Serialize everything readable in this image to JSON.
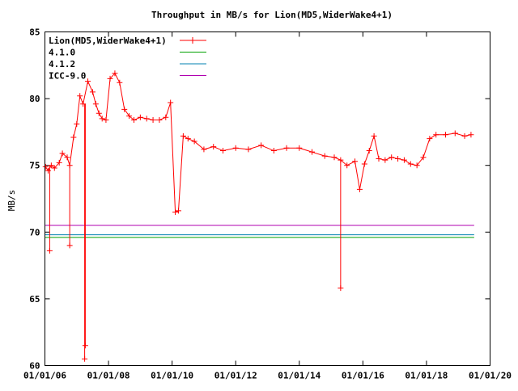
{
  "chart_data": {
    "type": "line",
    "title": "Throughput in MB/s for Lion(MD5,WiderWake4+1)",
    "xlabel": "",
    "ylabel": "MB/s",
    "xlim": [
      2006.0,
      2020.0
    ],
    "ylim": [
      60,
      85
    ],
    "x_ticks": [
      "01/01/06",
      "01/01/08",
      "01/01/10",
      "01/01/12",
      "01/01/14",
      "01/01/16",
      "01/01/18",
      "01/01/20"
    ],
    "y_ticks": [
      60,
      65,
      70,
      75,
      80,
      85
    ],
    "grid": false,
    "legend_position": "top-left",
    "series": [
      {
        "name": "Lion(MD5,WiderWake4+1)",
        "color": "#ff0000",
        "marker": "plus",
        "x": [
          2006.02,
          2006.1,
          2006.2,
          2006.3,
          2006.45,
          2006.55,
          2006.7,
          2006.78,
          2006.9,
          2007.0,
          2007.1,
          2007.2,
          2007.35,
          2007.5,
          2007.6,
          2007.7,
          2007.8,
          2007.92,
          2008.05,
          2008.2,
          2008.35,
          2008.5,
          2008.65,
          2008.8,
          2009.0,
          2009.2,
          2009.4,
          2009.6,
          2009.8,
          2009.95,
          2010.1,
          2010.2,
          2010.35,
          2010.5,
          2010.7,
          2011.0,
          2011.3,
          2011.6,
          2012.0,
          2012.4,
          2012.8,
          2013.2,
          2013.6,
          2014.0,
          2014.4,
          2014.8,
          2015.1,
          2015.3,
          2015.5,
          2015.75,
          2015.9,
          2016.05,
          2016.2,
          2016.35,
          2016.5,
          2016.7,
          2016.9,
          2017.1,
          2017.3,
          2017.5,
          2017.7,
          2017.9,
          2018.1,
          2018.3,
          2018.6,
          2018.9,
          2019.2,
          2019.4
        ],
        "y": [
          74.9,
          74.6,
          75.0,
          74.8,
          75.2,
          75.9,
          75.6,
          75.0,
          77.1,
          78.1,
          80.2,
          79.6,
          81.3,
          80.5,
          79.6,
          78.9,
          78.5,
          78.4,
          81.5,
          81.9,
          81.2,
          79.2,
          78.7,
          78.4,
          78.6,
          78.5,
          78.4,
          78.4,
          78.6,
          79.7,
          71.5,
          71.6,
          77.2,
          77.0,
          76.8,
          76.2,
          76.4,
          76.1,
          76.3,
          76.2,
          76.5,
          76.1,
          76.3,
          76.3,
          76.0,
          75.7,
          75.6,
          75.4,
          75.0,
          75.3,
          73.2,
          75.1,
          76.1,
          77.2,
          75.5,
          75.4,
          75.6,
          75.5,
          75.4,
          75.1,
          75.0,
          75.6,
          77.0,
          77.3,
          77.3,
          77.4,
          77.2,
          77.3
        ],
        "spikes": [
          {
            "x": 2006.15,
            "y": 68.6
          },
          {
            "x": 2006.78,
            "y": 69.0
          },
          {
            "x": 2007.25,
            "y": 60.5
          },
          {
            "x": 2007.27,
            "y": 61.5
          },
          {
            "x": 2015.3,
            "y": 65.8
          }
        ]
      },
      {
        "name": "4.1.0",
        "color": "#00a000",
        "x": [
          2006.0,
          2019.5
        ],
        "y": [
          69.6,
          69.6
        ]
      },
      {
        "name": "4.1.2",
        "color": "#0080b0",
        "x": [
          2006.0,
          2019.5
        ],
        "y": [
          69.8,
          69.8
        ]
      },
      {
        "name": "ICC-9.0",
        "color": "#b000b0",
        "x": [
          2006.0,
          2019.5
        ],
        "y": [
          70.5,
          70.5
        ]
      }
    ]
  }
}
